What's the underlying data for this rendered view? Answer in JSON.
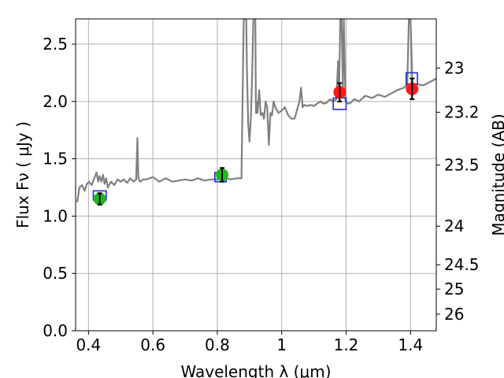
{
  "chart_data": {
    "type": "line",
    "xlabel": "Wavelength  λ (μm)",
    "ylabel": "Flux  Fν  ( μJy )",
    "ylabel_right": "Magnitude (AB)",
    "xlim": [
      0.36,
      1.48
    ],
    "ylim": [
      0.0,
      2.72
    ],
    "grid": true,
    "x_ticks": [
      {
        "value": 0.4,
        "label": "0.4"
      },
      {
        "value": 0.6,
        "label": "0.6"
      },
      {
        "value": 0.8,
        "label": "0.8"
      },
      {
        "value": 1.0,
        "label": "1"
      },
      {
        "value": 1.2,
        "label": "1.2"
      },
      {
        "value": 1.4,
        "label": "1.4"
      }
    ],
    "y_ticks": [
      {
        "value": 0.0,
        "label": "0.0"
      },
      {
        "value": 0.5,
        "label": "0.5"
      },
      {
        "value": 1.0,
        "label": "1.0"
      },
      {
        "value": 1.5,
        "label": "1.5"
      },
      {
        "value": 2.0,
        "label": "2.0"
      },
      {
        "value": 2.5,
        "label": "2.5"
      }
    ],
    "mag_ticks": [
      {
        "value": 23,
        "label": "23"
      },
      {
        "value": 23.2,
        "label": "23.2"
      },
      {
        "value": 23.5,
        "label": "23.5"
      },
      {
        "value": 24,
        "label": "24"
      },
      {
        "value": 24.5,
        "label": "24.5"
      },
      {
        "value": 25,
        "label": "25"
      },
      {
        "value": 26,
        "label": "26"
      }
    ],
    "model_spectrum": {
      "color": "#808080",
      "x": [
        0.365,
        0.372,
        0.38,
        0.388,
        0.395,
        0.402,
        0.41,
        0.418,
        0.425,
        0.43,
        0.434,
        0.44,
        0.445,
        0.45,
        0.455,
        0.46,
        0.47,
        0.48,
        0.49,
        0.5,
        0.51,
        0.52,
        0.53,
        0.54,
        0.548,
        0.552,
        0.555,
        0.56,
        0.57,
        0.58,
        0.6,
        0.62,
        0.64,
        0.66,
        0.68,
        0.7,
        0.72,
        0.74,
        0.76,
        0.78,
        0.8,
        0.82,
        0.84,
        0.86,
        0.875,
        0.882,
        0.886,
        0.888,
        0.89,
        0.892,
        0.896,
        0.9,
        0.904,
        0.908,
        0.912,
        0.915,
        0.918,
        0.92,
        0.922,
        0.925,
        0.93,
        0.935,
        0.94,
        0.945,
        0.95,
        0.955,
        0.96,
        0.965,
        0.97,
        0.975,
        0.98,
        0.99,
        1.0,
        1.01,
        1.02,
        1.03,
        1.04,
        1.05,
        1.055,
        1.06,
        1.065,
        1.07,
        1.08,
        1.09,
        1.1,
        1.11,
        1.12,
        1.13,
        1.14,
        1.15,
        1.16,
        1.17,
        1.175,
        1.178,
        1.182,
        1.186,
        1.19,
        1.193,
        1.198,
        1.205,
        1.215,
        1.225,
        1.24,
        1.26,
        1.28,
        1.3,
        1.32,
        1.34,
        1.36,
        1.38,
        1.39,
        1.395,
        1.4,
        1.403,
        1.406,
        1.41,
        1.42,
        1.44,
        1.46,
        1.48
      ],
      "y": [
        1.12,
        1.25,
        1.27,
        1.22,
        1.28,
        1.3,
        1.27,
        1.33,
        1.38,
        1.3,
        1.35,
        1.3,
        1.36,
        1.28,
        1.33,
        1.25,
        1.3,
        1.27,
        1.32,
        1.3,
        1.32,
        1.29,
        1.33,
        1.3,
        1.32,
        1.68,
        1.33,
        1.3,
        1.32,
        1.32,
        1.34,
        1.3,
        1.33,
        1.3,
        1.31,
        1.32,
        1.31,
        1.33,
        1.31,
        1.32,
        1.32,
        1.34,
        1.32,
        1.33,
        1.33,
        2.72,
        2.72,
        2.72,
        2.72,
        2.3,
        1.8,
        1.65,
        1.85,
        2.2,
        2.72,
        2.72,
        2.72,
        1.9,
        2.0,
        1.9,
        2.1,
        1.88,
        1.9,
        1.85,
        2.0,
        1.95,
        1.62,
        1.9,
        1.88,
        2.0,
        1.95,
        1.9,
        1.92,
        1.95,
        1.88,
        1.85,
        1.85,
        1.95,
        2.0,
        2.12,
        1.95,
        1.97,
        1.96,
        1.97,
        1.96,
        1.98,
        2.0,
        1.98,
        1.99,
        2.02,
        2.0,
        2.02,
        2.35,
        2.05,
        2.72,
        2.72,
        2.1,
        2.72,
        2.0,
        1.98,
        1.99,
        2.02,
        2.0,
        2.05,
        2.03,
        2.06,
        2.04,
        2.07,
        2.1,
        2.12,
        2.15,
        2.72,
        2.72,
        2.45,
        2.15,
        2.13,
        2.15,
        2.14,
        2.17,
        2.2
      ]
    },
    "model_points": [
      {
        "x": 0.435,
        "y": 1.18,
        "width": 0.04,
        "height": 0.08,
        "color": "#1f2fd6"
      },
      {
        "x": 0.81,
        "y": 1.34,
        "width": 0.035,
        "height": 0.08,
        "color": "#1f2fd6"
      },
      {
        "x": 1.18,
        "y": 1.98,
        "width": 0.04,
        "height": 0.1,
        "color": "#1f2fd6"
      },
      {
        "x": 1.404,
        "y": 2.2,
        "width": 0.035,
        "height": 0.1,
        "color": "#1f2fd6"
      }
    ],
    "observed_points": [
      {
        "x": 0.435,
        "y": 1.15,
        "err": 0.05,
        "color": "#22b522"
      },
      {
        "x": 0.815,
        "y": 1.36,
        "err": 0.06,
        "color": "#22b522"
      },
      {
        "x": 1.18,
        "y": 2.08,
        "err": 0.08,
        "color": "#ff1a1a"
      },
      {
        "x": 1.405,
        "y": 2.11,
        "err": 0.09,
        "color": "#ff1a1a"
      }
    ]
  }
}
